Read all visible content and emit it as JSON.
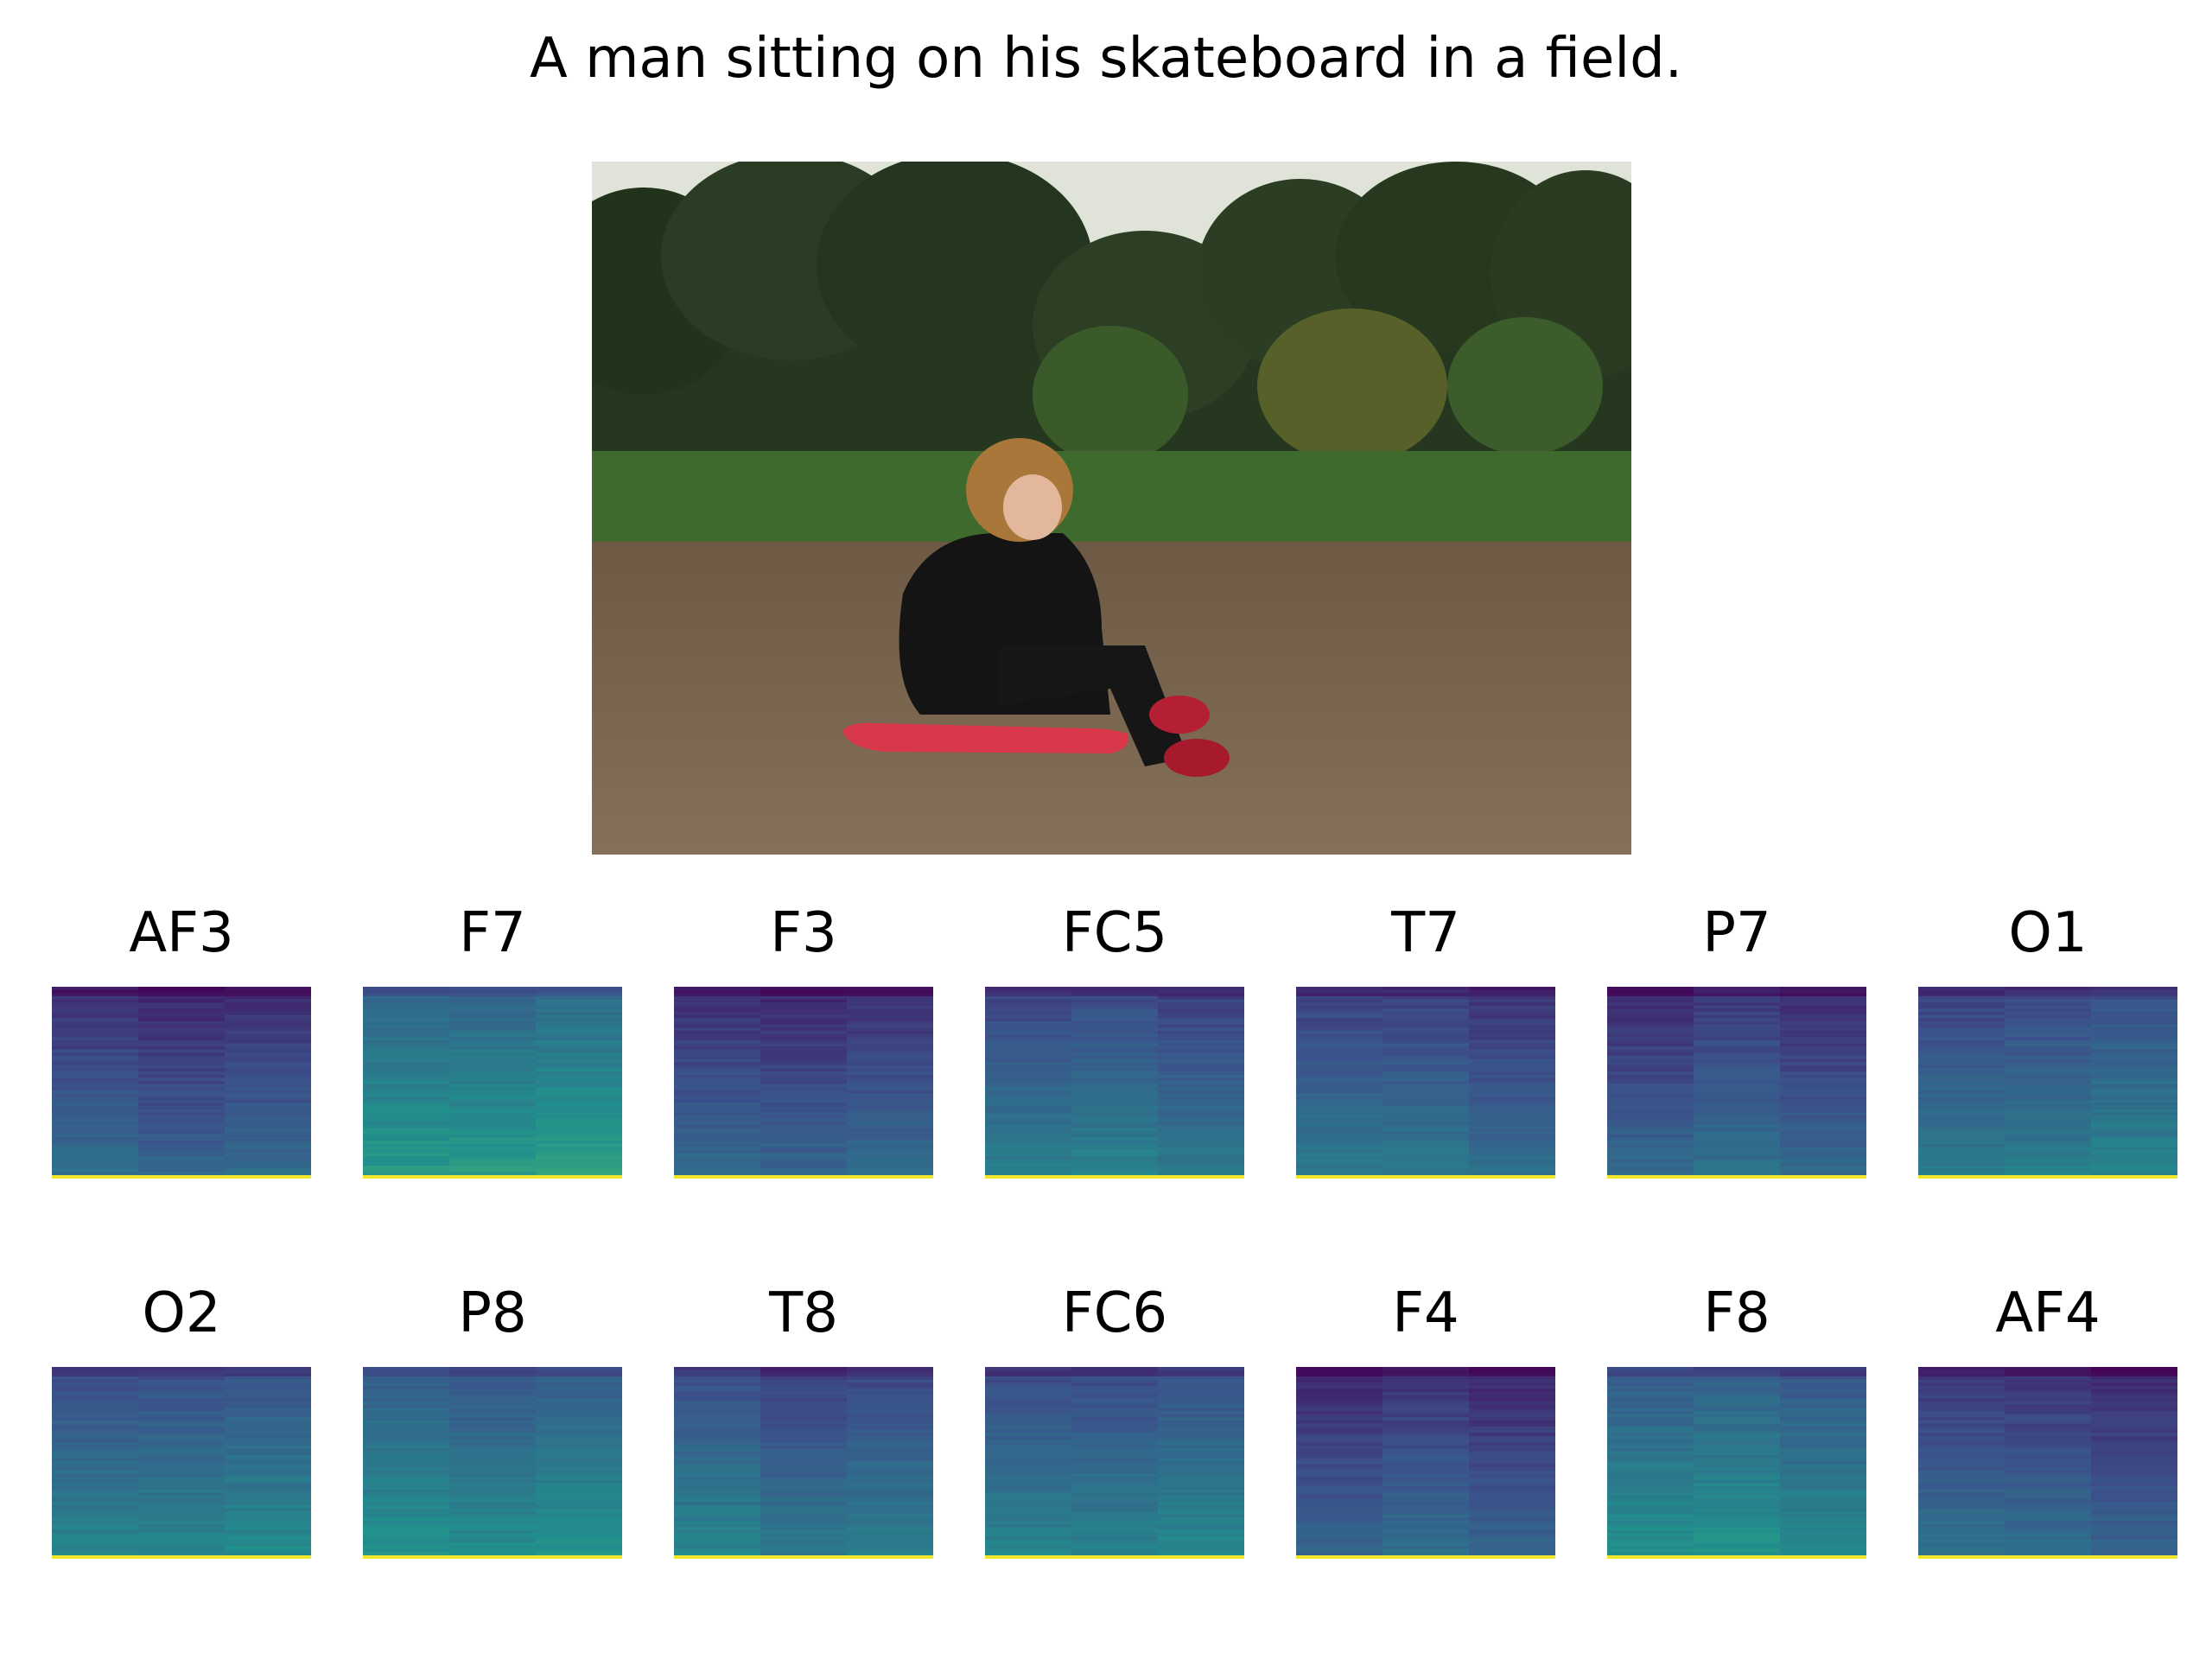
{
  "title": "A man sitting on his skateboard in a field.",
  "photo": {
    "depicts": "curly-haired man in black suit sitting on a red skateboard in a ploughed field, cornfield and trees behind",
    "colors": {
      "sky": "#dfe3d8",
      "trees": "#2c3f25",
      "corn": "#3f6a2e",
      "soil": "#7a654d",
      "skateboard": "#d8384a",
      "jacket": "#141414"
    }
  },
  "chart_data": {
    "type": "heatmap",
    "colormap": "viridis",
    "time_bins": 3,
    "frequency_bins": 60,
    "channels": [
      {
        "name": "AF3",
        "base": 0.24
      },
      {
        "name": "F7",
        "base": 0.46
      },
      {
        "name": "F3",
        "base": 0.26
      },
      {
        "name": "FC5",
        "base": 0.32
      },
      {
        "name": "T7",
        "base": 0.29
      },
      {
        "name": "P7",
        "base": 0.27
      },
      {
        "name": "O1",
        "base": 0.33
      },
      {
        "name": "O2",
        "base": 0.36
      },
      {
        "name": "P8",
        "base": 0.4
      },
      {
        "name": "T8",
        "base": 0.33
      },
      {
        "name": "FC6",
        "base": 0.37
      },
      {
        "name": "F4",
        "base": 0.24
      },
      {
        "name": "F8",
        "base": 0.4
      },
      {
        "name": "AF4",
        "base": 0.26
      }
    ]
  }
}
